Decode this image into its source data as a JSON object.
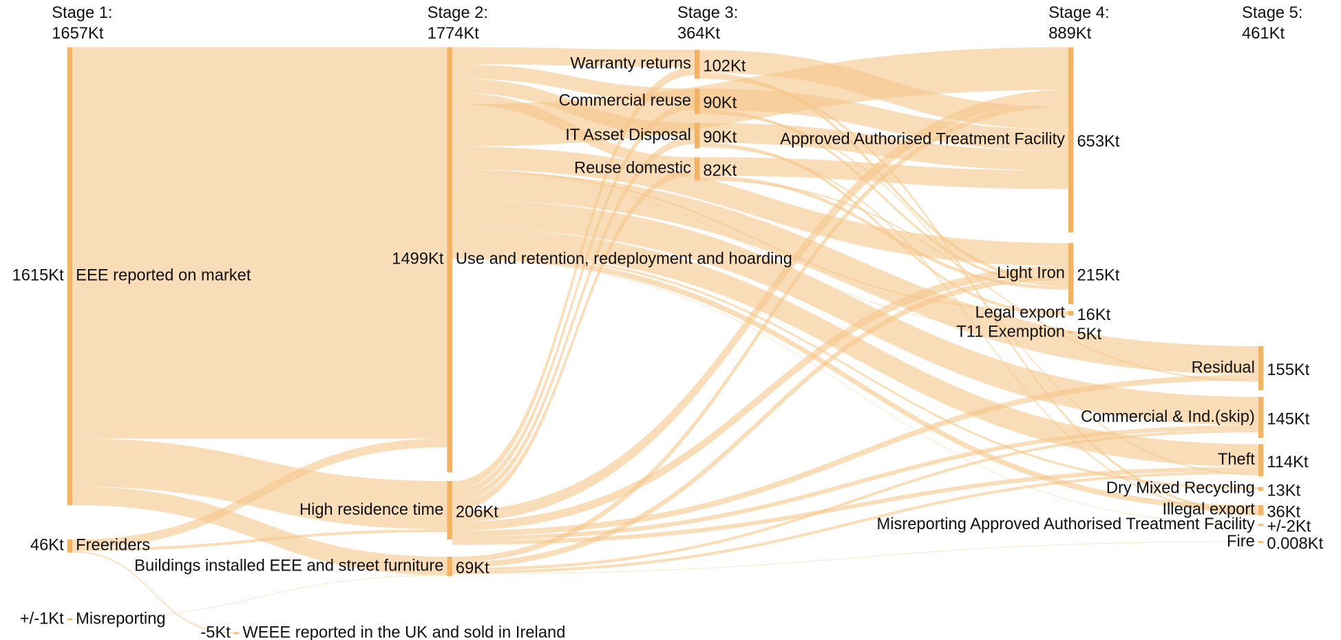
{
  "chart_data": {
    "type": "sankey",
    "node_color": "#f2b365",
    "link_color": "#f5c68a",
    "stages": [
      {
        "name": "Stage 1:",
        "value": 1657,
        "value_label": "1657Kt"
      },
      {
        "name": "Stage 2:",
        "value": 1774,
        "value_label": "1774Kt"
      },
      {
        "name": "Stage 3:",
        "value": 364,
        "value_label": "364Kt"
      },
      {
        "name": "Stage 4:",
        "value": 889,
        "value_label": "889Kt"
      },
      {
        "name": "Stage 5:",
        "value": 461,
        "value_label": "461Kt"
      }
    ],
    "nodes": [
      {
        "name": "EEE reported on market",
        "value": 1615,
        "value_label": "1615Kt"
      },
      {
        "name": "Freeriders",
        "value": 46,
        "value_label": "46Kt"
      },
      {
        "name": "Misreporting",
        "value": 1,
        "value_label": "+/-1Kt"
      },
      {
        "name": "Use and retention, redeployment and hoarding",
        "value": 1499,
        "value_label": "1499Kt"
      },
      {
        "name": "High residence time",
        "value": 206,
        "value_label": "206Kt"
      },
      {
        "name": "Buildings installed EEE and street furniture",
        "value": 69,
        "value_label": "69Kt"
      },
      {
        "name": "WEEE reported in the UK and sold in Ireland",
        "value": -5,
        "value_label": "-5Kt"
      },
      {
        "name": "Warranty returns",
        "value": 102,
        "value_label": "102Kt"
      },
      {
        "name": "Commercial reuse",
        "value": 90,
        "value_label": "90Kt"
      },
      {
        "name": "IT Asset Disposal",
        "value": 90,
        "value_label": "90Kt"
      },
      {
        "name": "Reuse domestic",
        "value": 82,
        "value_label": "82Kt"
      },
      {
        "name": "Approved Authorised Treatment Facility",
        "value": 653,
        "value_label": "653Kt"
      },
      {
        "name": "Light Iron",
        "value": 215,
        "value_label": "215Kt"
      },
      {
        "name": "Legal export",
        "value": 16,
        "value_label": "16Kt"
      },
      {
        "name": "T11 Exemption",
        "value": 5,
        "value_label": "5Kt"
      },
      {
        "name": "Residual",
        "value": 155,
        "value_label": "155Kt"
      },
      {
        "name": "Commercial & Ind.(skip)",
        "value": 145,
        "value_label": "145Kt"
      },
      {
        "name": "Theft",
        "value": 114,
        "value_label": "114Kt"
      },
      {
        "name": "Dry Mixed Recycling",
        "value": 13,
        "value_label": "13Kt"
      },
      {
        "name": "Illegal export",
        "value": 36,
        "value_label": "36Kt"
      },
      {
        "name": "Misreporting Approved Authorised Treatment Facility",
        "value": 2,
        "value_label": "+/-2Kt"
      },
      {
        "name": "Fire",
        "value": 0.008,
        "value_label": "0.008Kt"
      }
    ],
    "links": [
      {
        "source": 0,
        "target": 3,
        "value": 1380
      },
      {
        "source": 0,
        "target": 4,
        "value": 170
      },
      {
        "source": 0,
        "target": 5,
        "value": 65
      },
      {
        "source": 1,
        "target": 3,
        "value": 31
      },
      {
        "source": 1,
        "target": 4,
        "value": 10
      },
      {
        "source": 1,
        "target": 6,
        "value": 5
      },
      {
        "source": 2,
        "target": 5,
        "value": 1
      },
      {
        "source": 3,
        "target": 7,
        "value": 60
      },
      {
        "source": 3,
        "target": 8,
        "value": 50
      },
      {
        "source": 3,
        "target": 9,
        "value": 50
      },
      {
        "source": 3,
        "target": 10,
        "value": 40
      },
      {
        "source": 3,
        "target": 11,
        "value": 150
      },
      {
        "source": 3,
        "target": 12,
        "value": 80
      },
      {
        "source": 3,
        "target": 13,
        "value": 6
      },
      {
        "source": 3,
        "target": 14,
        "value": 2
      },
      {
        "source": 3,
        "target": 15,
        "value": 100
      },
      {
        "source": 3,
        "target": 16,
        "value": 100
      },
      {
        "source": 3,
        "target": 17,
        "value": 80
      },
      {
        "source": 3,
        "target": 18,
        "value": 8
      },
      {
        "source": 3,
        "target": 19,
        "value": 20
      },
      {
        "source": 3,
        "target": 20,
        "value": 1
      },
      {
        "source": 4,
        "target": 7,
        "value": 30
      },
      {
        "source": 4,
        "target": 8,
        "value": 25
      },
      {
        "source": 4,
        "target": 9,
        "value": 25
      },
      {
        "source": 4,
        "target": 10,
        "value": 25
      },
      {
        "source": 4,
        "target": 11,
        "value": 40
      },
      {
        "source": 4,
        "target": 12,
        "value": 30
      },
      {
        "source": 4,
        "target": 15,
        "value": 20
      },
      {
        "source": 4,
        "target": 16,
        "value": 15
      },
      {
        "source": 4,
        "target": 17,
        "value": 15
      },
      {
        "source": 5,
        "target": 11,
        "value": 20
      },
      {
        "source": 5,
        "target": 12,
        "value": 20
      },
      {
        "source": 5,
        "target": 16,
        "value": 10
      },
      {
        "source": 5,
        "target": 17,
        "value": 10
      },
      {
        "source": 5,
        "target": 21,
        "value": 0.008
      },
      {
        "source": 7,
        "target": 11,
        "value": 80
      },
      {
        "source": 7,
        "target": 12,
        "value": 12
      },
      {
        "source": 7,
        "target": 19,
        "value": 10
      },
      {
        "source": 8,
        "target": 11,
        "value": 75
      },
      {
        "source": 8,
        "target": 12,
        "value": 10
      },
      {
        "source": 8,
        "target": 17,
        "value": 5
      },
      {
        "source": 9,
        "target": 11,
        "value": 70
      },
      {
        "source": 9,
        "target": 13,
        "value": 10
      },
      {
        "source": 9,
        "target": 19,
        "value": 6
      },
      {
        "source": 10,
        "target": 11,
        "value": 65
      },
      {
        "source": 10,
        "target": 12,
        "value": 12
      },
      {
        "source": 10,
        "target": 15,
        "value": 5
      }
    ]
  }
}
